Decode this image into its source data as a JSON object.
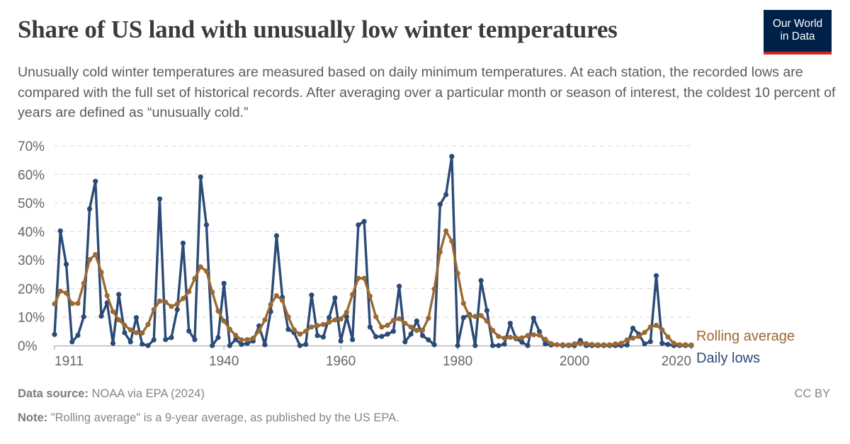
{
  "header": {
    "title": "Share of US land with unusually low winter temperatures",
    "subtitle": "Unusually cold winter temperatures are measured based on daily minimum temperatures. At each station, the recorded lows are compared with the full set of historical records. After averaging over a particular month or season of interest, the coldest 10 percent of years are defined as “unusually cold.”",
    "logo_line1": "Our World",
    "logo_line2": "in Data"
  },
  "footer": {
    "source_label": "Data source:",
    "source_text": "NOAA via EPA (2024)",
    "note_label": "Note:",
    "note_text": "\"Rolling average\" is a 9-year average, as published by the US EPA.",
    "license": "CC BY"
  },
  "colors": {
    "daily_lows": "#2b4a78",
    "rolling_average": "#9a6a32",
    "grid": "#dddddd"
  },
  "chart_data": {
    "type": "line",
    "title": "Share of US land with unusually low winter temperatures",
    "xlim": [
      1911,
      2020
    ],
    "ylim": [
      0,
      70
    ],
    "x_ticks": [
      "1911",
      "1940",
      "1960",
      "1980",
      "2000",
      "2020"
    ],
    "y_ticks": [
      "0%",
      "10%",
      "20%",
      "30%",
      "40%",
      "50%",
      "60%",
      "70%"
    ],
    "grid": "horizontal dashed",
    "legend": "inline labels at right end of lines",
    "x_start": 1911,
    "series": [
      {
        "name": "Rolling average",
        "color": "#9a6a32",
        "values": [
          14.6,
          19.1,
          18.4,
          14.7,
          14.8,
          21.8,
          30.1,
          31.9,
          25.7,
          17.5,
          11.9,
          9.0,
          7.1,
          5.5,
          4.5,
          4.4,
          7.4,
          12.6,
          15.6,
          15.2,
          13.7,
          14.6,
          16.5,
          18.9,
          23.5,
          27.6,
          26.1,
          18.7,
          12.1,
          8.6,
          5.7,
          3.6,
          2.0,
          2.1,
          2.6,
          5.1,
          9.0,
          14.4,
          17.5,
          15.8,
          10.1,
          5.5,
          4.0,
          5.0,
          6.5,
          7.0,
          7.4,
          8.2,
          9.0,
          9.3,
          11.7,
          17.9,
          23.6,
          23.6,
          17.3,
          10.1,
          6.5,
          7.1,
          8.8,
          9.4,
          7.8,
          6.5,
          5.3,
          5.4,
          9.6,
          19.8,
          32.8,
          40.2,
          36.6,
          25.3,
          14.8,
          10.3,
          10.2,
          10.5,
          8.6,
          5.3,
          3.2,
          2.6,
          2.9,
          2.7,
          2.7,
          3.5,
          3.8,
          3.6,
          2.2,
          0.7,
          0.3,
          0.3,
          0.2,
          0.6,
          0.7,
          0.7,
          0.4,
          0.3,
          0.3,
          0.3,
          0.6,
          0.8,
          2.0,
          2.6,
          3.2,
          4.6,
          6.5,
          7.1,
          5.5,
          3.0,
          0.8,
          0.3,
          0.3,
          0.2
        ]
      },
      {
        "name": "Daily lows",
        "color": "#2b4a78",
        "values": [
          3.9,
          40.2,
          28.5,
          1.3,
          3.6,
          10.1,
          47.9,
          57.6,
          10.3,
          15.0,
          0.8,
          17.9,
          4.5,
          1.3,
          9.8,
          0.5,
          0,
          2.0,
          51.4,
          2.1,
          2.8,
          12.6,
          35.9,
          5.1,
          2.1,
          59.1,
          42.3,
          0,
          2.8,
          21.8,
          0,
          2.1,
          0.4,
          0.8,
          1.6,
          6.9,
          0.3,
          11.9,
          38.5,
          16.9,
          5.7,
          4.5,
          0,
          0.4,
          17.7,
          3.5,
          3.0,
          9.8,
          16.7,
          1.6,
          10.1,
          2.1,
          42.3,
          43.5,
          6.5,
          3.1,
          3.2,
          4.0,
          5.0,
          20.8,
          1.3,
          4.0,
          8.6,
          3.5,
          2.0,
          0.3,
          49.5,
          52.9,
          66.3,
          0,
          9.8,
          10.9,
          0,
          22.8,
          12.3,
          0,
          0,
          0.5,
          7.8,
          2.4,
          1.2,
          0,
          9.6,
          4.9,
          0.6,
          0.2,
          0.3,
          0,
          0,
          0,
          1.8,
          0,
          0,
          0,
          0,
          0,
          0,
          0,
          0.2,
          6.1,
          4.0,
          0.6,
          1.4,
          24.5,
          0.8,
          0.4,
          0,
          0,
          0,
          0
        ]
      }
    ]
  }
}
